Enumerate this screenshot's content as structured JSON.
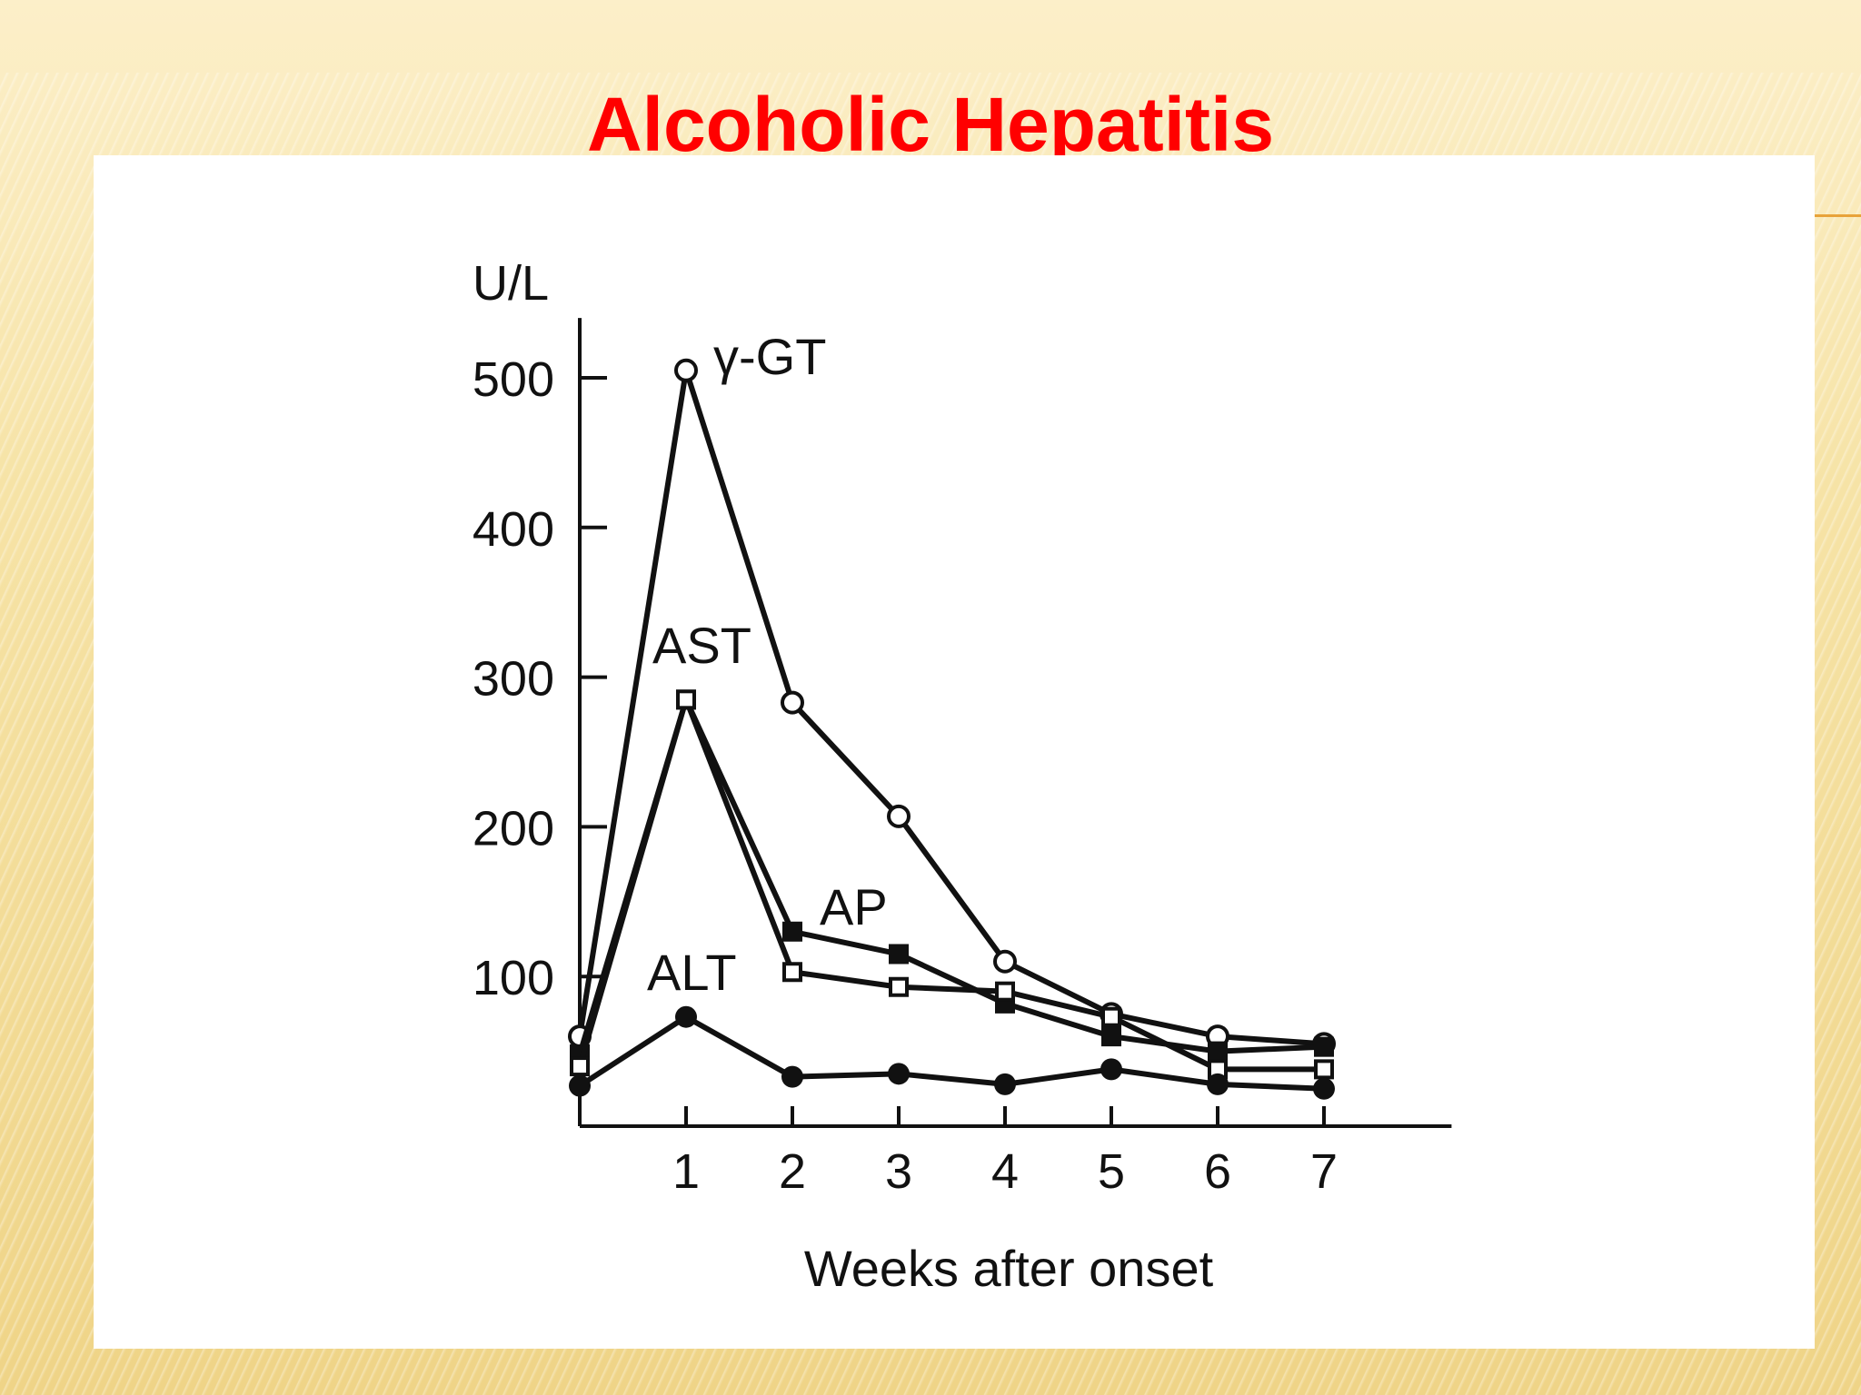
{
  "slide": {
    "title": "Alcoholic Hepatitis"
  },
  "chart_data": {
    "type": "line",
    "ylabel": "U/L",
    "xlabel": "Weeks after onset",
    "x_ticks": [
      1,
      2,
      3,
      4,
      5,
      6,
      7
    ],
    "y_ticks": [
      100,
      200,
      300,
      400,
      500
    ],
    "xlim": [
      0,
      8
    ],
    "ylim": [
      0,
      540
    ],
    "x": [
      0,
      1,
      2,
      3,
      4,
      5,
      6,
      7
    ],
    "series": [
      {
        "name": "γ-GT",
        "marker": "open-circle",
        "values": [
          60,
          505,
          283,
          207,
          110,
          75,
          60,
          55
        ]
      },
      {
        "name": "AST",
        "marker": "filled-square",
        "values": [
          48,
          285,
          130,
          115,
          82,
          60,
          50,
          53
        ]
      },
      {
        "name": "AP",
        "marker": "open-square",
        "values": [
          40,
          285,
          103,
          93,
          90,
          73,
          38,
          38
        ]
      },
      {
        "name": "ALT",
        "marker": "filled-circle",
        "values": [
          27,
          73,
          33,
          35,
          28,
          38,
          28,
          25
        ]
      }
    ],
    "annotations": [
      "γ-GT",
      "AST",
      "AP",
      "ALT"
    ],
    "grid": false,
    "colors": {
      "line": "#111111",
      "background": "#ffffff",
      "title": "#ff0000"
    }
  }
}
